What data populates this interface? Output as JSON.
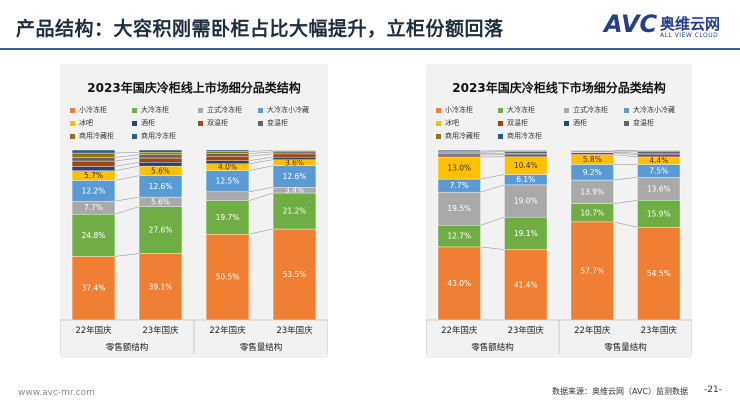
{
  "header": {
    "title": "产品结构：大容积刚需卧柜占比大幅提升，立柜份额回落",
    "logo_main": "AVC",
    "logo_cn": "奥维云网",
    "logo_sub": "ALL VIEW CLOUD"
  },
  "footer": {
    "url": "www.avc-mr.com",
    "source": "数据来源：奥维云网（AVC）监测数据",
    "page": "-21-"
  },
  "chart_data": [
    {
      "type": "bar",
      "stacked": true,
      "title": "2023年国庆冷柜线上市场细分品类结构",
      "legend": [
        "小冷冻柜",
        "大冷冻柜",
        "立式冷冻柜",
        "大冷冻小冷藏",
        "冰吧",
        "酒柜",
        "双温柜",
        "变温柜",
        "商用冷藏柜",
        "商用冷冻柜"
      ],
      "categories": [
        "22年国庆",
        "23年国庆",
        "22年国庆",
        "23年国庆"
      ],
      "groups": [
        "零售额结构",
        "零售量结构"
      ],
      "series": [
        {
          "name": "小冷冻柜",
          "values": [
            37.4,
            39.1,
            50.5,
            53.5
          ],
          "labels": [
            "37.4%",
            "39.1%",
            "50.5%",
            "53.5%"
          ]
        },
        {
          "name": "大冷冻柜",
          "values": [
            24.8,
            27.6,
            19.7,
            21.2
          ],
          "labels": [
            "24.8%",
            "27.6%",
            "19.7%",
            "21.2%"
          ]
        },
        {
          "name": "立式冷冻柜",
          "values": [
            7.7,
            5.6,
            5.2,
            3.4
          ],
          "labels": [
            "7.7%",
            "5.6%",
            "",
            "3.4%"
          ]
        },
        {
          "name": "大冷冻小冷藏",
          "values": [
            12.2,
            12.6,
            12.5,
            12.6
          ],
          "labels": [
            "12.2%",
            "12.6%",
            "12.5%",
            "12.6%"
          ]
        },
        {
          "name": "冰吧",
          "values": [
            5.7,
            5.6,
            4.0,
            3.6
          ],
          "labels": [
            "5.7%",
            "5.6%",
            "4.0%",
            "3.6%"
          ]
        },
        {
          "name": "酒柜",
          "values": [
            2.5,
            2.3,
            1.8,
            1.5
          ],
          "labels": [
            "",
            "",
            "",
            ""
          ]
        },
        {
          "name": "双温柜",
          "values": [
            3.2,
            2.5,
            2.6,
            1.9
          ],
          "labels": [
            "",
            "",
            "",
            ""
          ]
        },
        {
          "name": "变温柜",
          "values": [
            2.1,
            1.9,
            1.5,
            1.2
          ],
          "labels": [
            "",
            "",
            "",
            ""
          ]
        },
        {
          "name": "商用冷藏柜",
          "values": [
            2.6,
            1.5,
            1.4,
            0.8
          ],
          "labels": [
            "",
            "",
            "",
            ""
          ]
        },
        {
          "name": "商用冷冻柜",
          "values": [
            1.8,
            1.3,
            0.8,
            0.3
          ],
          "labels": [
            "",
            "",
            "",
            ""
          ]
        }
      ],
      "ylim": [
        0,
        100
      ]
    },
    {
      "type": "bar",
      "stacked": true,
      "title": "2023年国庆冷柜线下市场细分品类结构",
      "legend": [
        "小冷冻柜",
        "大冷冻柜",
        "立式冷冻柜",
        "大冷冻小冷藏",
        "冰吧",
        "双温柜",
        "酒柜",
        "变温柜",
        "商用冷藏柜",
        "商用冷冻柜"
      ],
      "categories": [
        "22年国庆",
        "23年国庆",
        "22年国庆",
        "23年国庆"
      ],
      "groups": [
        "零售额结构",
        "零售量结构"
      ],
      "series": [
        {
          "name": "小冷冻柜",
          "values": [
            43.0,
            41.4,
            57.7,
            54.5
          ],
          "labels": [
            "43.0%",
            "41.4%",
            "57.7%",
            "54.5%"
          ]
        },
        {
          "name": "大冷冻柜",
          "values": [
            12.7,
            19.1,
            10.7,
            15.9
          ],
          "labels": [
            "12.7%",
            "19.1%",
            "10.7%",
            "15.9%"
          ]
        },
        {
          "name": "立式冷冻柜",
          "values": [
            19.5,
            19.0,
            13.9,
            13.6
          ],
          "labels": [
            "19.5%",
            "19.0%",
            "13.9%",
            "13.6%"
          ]
        },
        {
          "name": "大冷冻小冷藏",
          "values": [
            7.7,
            6.1,
            9.2,
            7.5
          ],
          "labels": [
            "7.7%",
            "6.1%",
            "9.2%",
            "7.5%"
          ]
        },
        {
          "name": "冰吧",
          "values": [
            13.0,
            10.4,
            5.8,
            4.4
          ],
          "labels": [
            "13.0%",
            "10.4%",
            "5.8%",
            "4.4%"
          ]
        },
        {
          "name": "双温柜",
          "values": [
            1.2,
            1.2,
            1.1,
            1.3
          ],
          "labels": [
            "",
            "",
            "",
            ""
          ]
        },
        {
          "name": "酒柜",
          "values": [
            0.8,
            0.8,
            0.4,
            0.9
          ],
          "labels": [
            "",
            "",
            "",
            ""
          ]
        },
        {
          "name": "变温柜",
          "values": [
            0.8,
            1.0,
            0.6,
            1.2
          ],
          "labels": [
            "",
            "",
            "",
            ""
          ]
        },
        {
          "name": "商用冷藏柜",
          "values": [
            0.7,
            0.6,
            0.4,
            0.4
          ],
          "labels": [
            "",
            "",
            "",
            ""
          ]
        },
        {
          "name": "商用冷冻柜",
          "values": [
            0.6,
            0.4,
            0.2,
            0.3
          ],
          "labels": [
            "",
            "",
            "",
            ""
          ]
        }
      ],
      "ylim": [
        0,
        100
      ]
    }
  ],
  "colors": {
    "小冷冻柜": "#f07f34",
    "大冷冻柜": "#6fae45",
    "立式冷冻柜": "#a9a9a9",
    "大冷冻小冷藏": "#5b9bd5",
    "冰吧": "#ffc000",
    "酒柜": "#264478",
    "双温柜": "#9e480e",
    "变温柜": "#636363",
    "商用冷藏柜": "#997300",
    "商用冷冻柜": "#255e91"
  }
}
